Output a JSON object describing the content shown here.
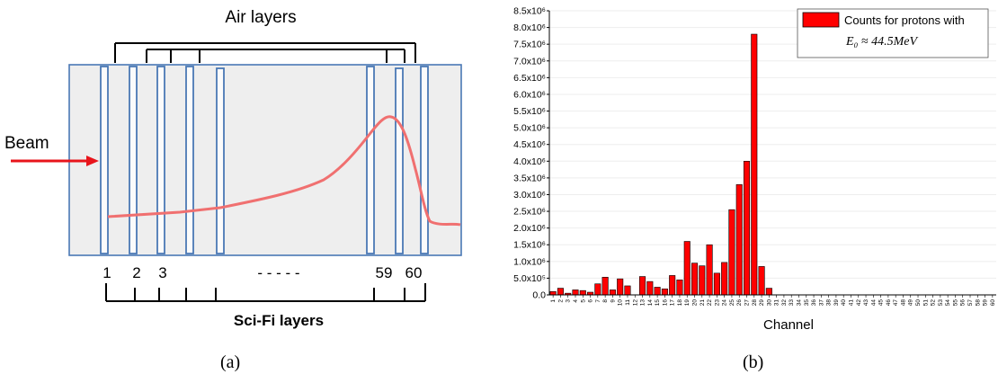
{
  "panel_a": {
    "caption": "(a)",
    "air_label": "Air layers",
    "beam_label": "Beam",
    "scifi_label": "Sci-Fi  layers",
    "layer_numbers": [
      "1",
      "2",
      "3",
      "59",
      "60"
    ],
    "dashes": "- - - - -",
    "colors": {
      "layer_box": "#4a78b5",
      "beam_arrow": "#e8141b",
      "curve": "#f07070",
      "background": "#eeeeee"
    }
  },
  "chart_data": {
    "type": "bar",
    "caption": "(b)",
    "xlabel": "Channel",
    "ylabel": "",
    "legend": {
      "label": "Counts for protons with",
      "formula": "E₀ ≈ 44.5MeV",
      "placement": "top-right"
    },
    "ylim": [
      0,
      8500000
    ],
    "yticks": [
      "0.0",
      "5.0x10⁵",
      "1.0x10⁶",
      "1.5x10⁶",
      "2.0x10⁶",
      "2.5x10⁶",
      "3.0x10⁶",
      "3.5x10⁶",
      "4.0x10⁶",
      "4.5x10⁶",
      "5.0x10⁶",
      "5.5x10⁶",
      "6.0x10⁶",
      "6.5x10⁶",
      "7.0x10⁶",
      "7.5x10⁶",
      "8.0x10⁶",
      "8.5x10⁶"
    ],
    "categories": [
      "1",
      "2",
      "3",
      "4",
      "5",
      "6",
      "7",
      "8",
      "9",
      "10",
      "11",
      "12",
      "13",
      "14",
      "15",
      "16",
      "17",
      "18",
      "19",
      "20",
      "21",
      "22",
      "23",
      "24",
      "25",
      "26",
      "27",
      "28",
      "29",
      "30",
      "31",
      "32",
      "33",
      "34",
      "35",
      "36",
      "37",
      "38",
      "39",
      "40",
      "41",
      "42",
      "43",
      "44",
      "45",
      "46",
      "47",
      "48",
      "49",
      "50",
      "51",
      "52",
      "53",
      "54",
      "55",
      "56",
      "57",
      "58",
      "59",
      "60"
    ],
    "values": [
      100000,
      200000,
      50000,
      150000,
      130000,
      80000,
      330000,
      530000,
      150000,
      480000,
      270000,
      0,
      550000,
      400000,
      230000,
      180000,
      580000,
      450000,
      1600000,
      950000,
      870000,
      1500000,
      650000,
      970000,
      2550000,
      3300000,
      4000000,
      7800000,
      850000,
      200000,
      0,
      0,
      0,
      0,
      0,
      0,
      0,
      0,
      0,
      0,
      0,
      0,
      0,
      0,
      0,
      0,
      0,
      0,
      0,
      0,
      0,
      0,
      0,
      0,
      0,
      0,
      0,
      0,
      0,
      0
    ],
    "colors": {
      "bar": "#ff0000",
      "bar_edge": "#000000",
      "grid": "#eeeeee",
      "axis": "#000000"
    },
    "grid": true
  }
}
